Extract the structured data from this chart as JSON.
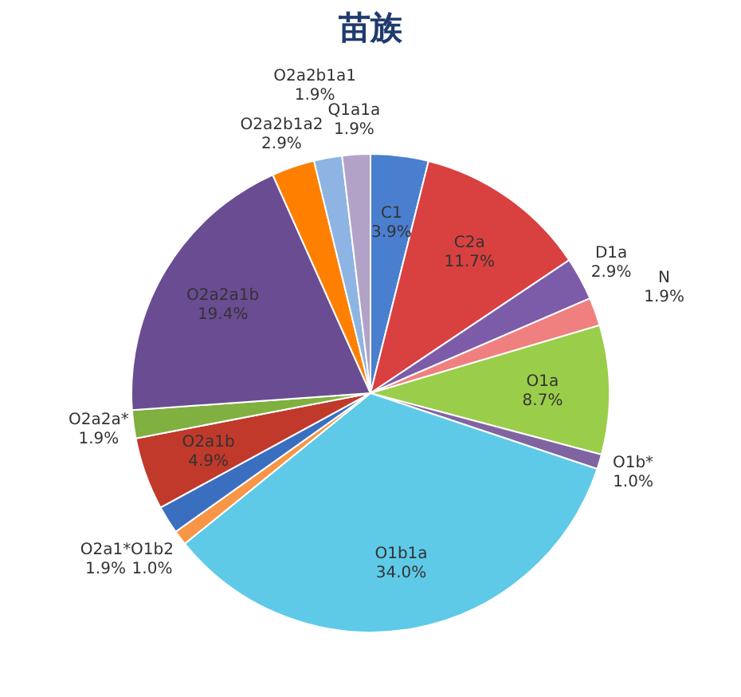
{
  "chart_data": {
    "type": "pie",
    "title": "苗族",
    "categories": [
      "C1",
      "C2a",
      "D1a",
      "N",
      "O1a",
      "O1b*",
      "O1b1a",
      "O1b2",
      "O2a1*",
      "O2a1b",
      "O2a2a*",
      "O2a2a1b",
      "O2a2b1a2",
      "O2a2b1a1",
      "Q1a1a"
    ],
    "values": [
      3.9,
      11.7,
      2.9,
      1.9,
      8.7,
      1.0,
      34.0,
      1.0,
      1.9,
      4.9,
      1.9,
      19.4,
      2.9,
      1.9,
      1.9
    ],
    "value_labels": [
      "3.9%",
      "11.7%",
      "2.9%",
      "1.9%",
      "8.7%",
      "1.0%",
      "34.0%",
      "1.0%",
      "1.9%",
      "4.9%",
      "1.9%",
      "19.4%",
      "2.9%",
      "1.9%",
      "1.9%"
    ],
    "colors": [
      "#4a7fd0",
      "#d94040",
      "#7c5ca8",
      "#f08080",
      "#9acd4a",
      "#8064a2",
      "#5ecae8",
      "#f79646",
      "#3a6fc0",
      "#c0392b",
      "#7fb040",
      "#6a4c93",
      "#ff8000",
      "#8db4e2",
      "#b3a2c7"
    ]
  }
}
